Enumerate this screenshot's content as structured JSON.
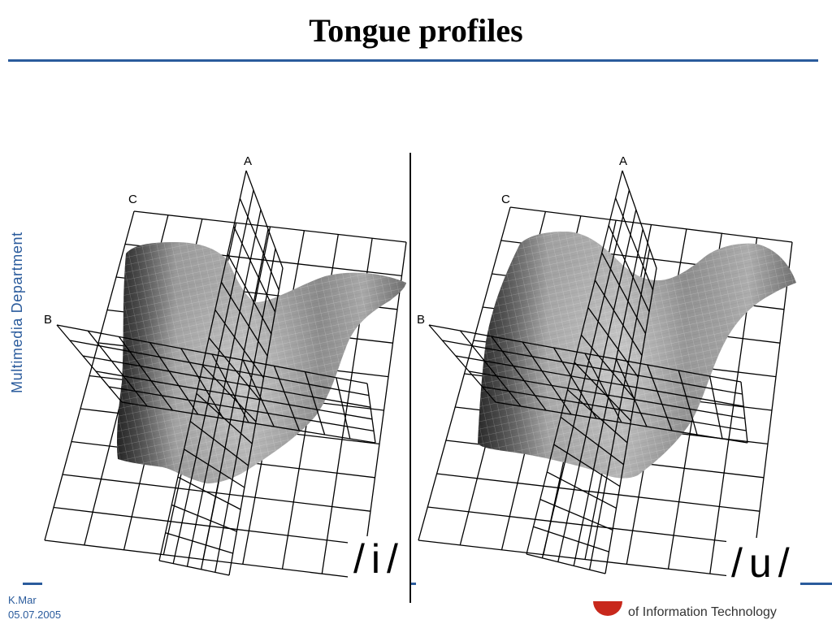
{
  "slide": {
    "title": "Tongue profiles",
    "side_label": "Multimedia Department"
  },
  "figures": [
    {
      "vowel": "/i/",
      "labels": {
        "a": "A",
        "b": "B",
        "c": "C"
      }
    },
    {
      "vowel": "/u/",
      "labels": {
        "a": "A",
        "b": "B",
        "c": "C"
      }
    }
  ],
  "footer": {
    "author": "K.Mar",
    "date": "05.07.2005",
    "institution": "of Information Technology",
    "logo_icon": "institution-logo-icon"
  },
  "colors": {
    "accent": "#2a5b9c",
    "logo": "#c8281c",
    "surface": "#8c8c8c",
    "grid": "#000000"
  }
}
